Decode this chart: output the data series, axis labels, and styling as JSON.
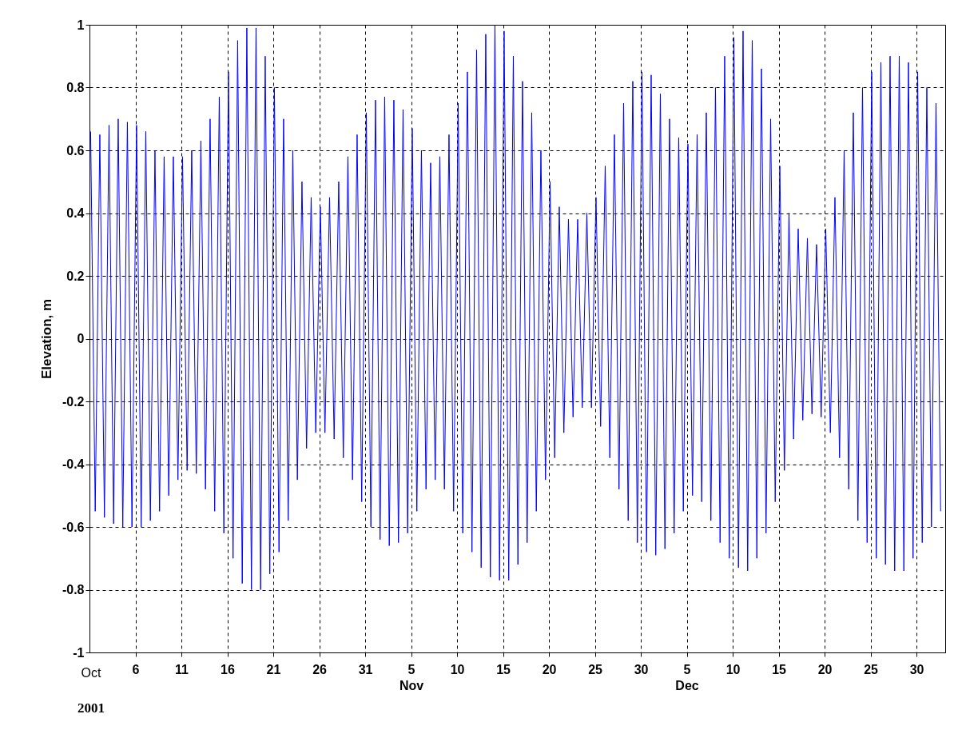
{
  "chart_data": {
    "type": "line",
    "ylabel": "Elevation, m",
    "annotations": [
      "Oct",
      "2001"
    ],
    "x": [
      "2001-10-01T03:00",
      "2001-10-01T15:00",
      "2001-10-02T03:00",
      "2001-10-02T15:00",
      "2001-10-03T03:00",
      "2001-10-03T15:00",
      "2001-10-04T03:00",
      "2001-10-04T15:00",
      "2001-10-05T03:00",
      "2001-10-05T15:00",
      "2001-10-06T03:00",
      "2001-10-06T15:00",
      "2001-10-07T03:00",
      "2001-10-07T15:00",
      "2001-10-08T03:00",
      "2001-10-08T15:00",
      "2001-10-09T03:00",
      "2001-10-09T15:00",
      "2001-10-10T03:00",
      "2001-10-10T15:00",
      "2001-10-11T03:00",
      "2001-10-11T15:00",
      "2001-10-12T03:00",
      "2001-10-12T15:00",
      "2001-10-13T03:00",
      "2001-10-13T15:00",
      "2001-10-14T03:00",
      "2001-10-14T15:00",
      "2001-10-15T03:00",
      "2001-10-15T15:00",
      "2001-10-16T03:00",
      "2001-10-16T15:00",
      "2001-10-17T03:00",
      "2001-10-17T15:00",
      "2001-10-18T03:00",
      "2001-10-18T15:00",
      "2001-10-19T03:00",
      "2001-10-19T15:00",
      "2001-10-20T03:00",
      "2001-10-20T15:00",
      "2001-10-21T03:00",
      "2001-10-21T15:00",
      "2001-10-22T03:00",
      "2001-10-22T15:00",
      "2001-10-23T03:00",
      "2001-10-23T15:00",
      "2001-10-24T03:00",
      "2001-10-24T15:00",
      "2001-10-25T03:00",
      "2001-10-25T15:00",
      "2001-10-26T03:00",
      "2001-10-26T15:00",
      "2001-10-27T03:00",
      "2001-10-27T15:00",
      "2001-10-28T03:00",
      "2001-10-28T15:00",
      "2001-10-29T03:00",
      "2001-10-29T15:00",
      "2001-10-30T03:00",
      "2001-10-30T15:00",
      "2001-10-31T03:00",
      "2001-10-31T15:00",
      "2001-11-01T03:00",
      "2001-11-01T15:00",
      "2001-11-02T03:00",
      "2001-11-02T15:00",
      "2001-11-03T03:00",
      "2001-11-03T15:00",
      "2001-11-04T03:00",
      "2001-11-04T15:00",
      "2001-11-05T03:00",
      "2001-11-05T15:00",
      "2001-11-06T03:00",
      "2001-11-06T15:00",
      "2001-11-07T03:00",
      "2001-11-07T15:00",
      "2001-11-08T03:00",
      "2001-11-08T15:00",
      "2001-11-09T03:00",
      "2001-11-09T15:00",
      "2001-11-10T03:00",
      "2001-11-10T15:00",
      "2001-11-11T03:00",
      "2001-11-11T15:00",
      "2001-11-12T03:00",
      "2001-11-12T15:00",
      "2001-11-13T03:00",
      "2001-11-13T15:00",
      "2001-11-14T03:00",
      "2001-11-14T15:00",
      "2001-11-15T03:00",
      "2001-11-15T15:00",
      "2001-11-16T03:00",
      "2001-11-16T15:00",
      "2001-11-17T03:00",
      "2001-11-17T15:00",
      "2001-11-18T03:00",
      "2001-11-18T15:00",
      "2001-11-19T03:00",
      "2001-11-19T15:00",
      "2001-11-20T03:00",
      "2001-11-20T15:00",
      "2001-11-21T03:00",
      "2001-11-21T15:00",
      "2001-11-22T03:00",
      "2001-11-22T15:00",
      "2001-11-23T03:00",
      "2001-11-23T15:00",
      "2001-11-24T03:00",
      "2001-11-24T15:00",
      "2001-11-25T03:00",
      "2001-11-25T15:00",
      "2001-11-26T03:00",
      "2001-11-26T15:00",
      "2001-11-27T03:00",
      "2001-11-27T15:00",
      "2001-11-28T03:00",
      "2001-11-28T15:00",
      "2001-11-29T03:00",
      "2001-11-29T15:00",
      "2001-11-30T03:00",
      "2001-11-30T15:00",
      "2001-12-01T03:00",
      "2001-12-01T15:00",
      "2001-12-02T03:00",
      "2001-12-02T15:00",
      "2001-12-03T03:00",
      "2001-12-03T15:00",
      "2001-12-04T03:00",
      "2001-12-04T15:00",
      "2001-12-05T03:00",
      "2001-12-05T15:00",
      "2001-12-06T03:00",
      "2001-12-06T15:00",
      "2001-12-07T03:00",
      "2001-12-07T15:00",
      "2001-12-08T03:00",
      "2001-12-08T15:00",
      "2001-12-09T03:00",
      "2001-12-09T15:00",
      "2001-12-10T03:00",
      "2001-12-10T15:00",
      "2001-12-11T03:00",
      "2001-12-11T15:00",
      "2001-12-12T03:00",
      "2001-12-12T15:00",
      "2001-12-13T03:00",
      "2001-12-13T15:00",
      "2001-12-14T03:00",
      "2001-12-14T15:00",
      "2001-12-15T03:00",
      "2001-12-15T15:00",
      "2001-12-16T03:00",
      "2001-12-16T15:00",
      "2001-12-17T03:00",
      "2001-12-17T15:00",
      "2001-12-18T03:00",
      "2001-12-18T15:00",
      "2001-12-19T03:00",
      "2001-12-19T15:00",
      "2001-12-20T03:00",
      "2001-12-20T15:00",
      "2001-12-21T03:00",
      "2001-12-21T15:00",
      "2001-12-22T03:00",
      "2001-12-22T15:00",
      "2001-12-23T03:00",
      "2001-12-23T15:00",
      "2001-12-24T03:00",
      "2001-12-24T15:00",
      "2001-12-25T03:00",
      "2001-12-25T15:00",
      "2001-12-26T03:00",
      "2001-12-26T15:00",
      "2001-12-27T03:00",
      "2001-12-27T15:00",
      "2001-12-28T03:00",
      "2001-12-28T15:00",
      "2001-12-29T03:00",
      "2001-12-29T15:00",
      "2001-12-30T03:00",
      "2001-12-30T15:00",
      "2001-12-31T03:00",
      "2001-12-31T15:00",
      "2002-01-01T03:00",
      "2002-01-01T15:00"
    ],
    "series": [
      {
        "color": "#0000ff",
        "values": [
          0.66,
          -0.55,
          0.65,
          -0.57,
          0.68,
          -0.59,
          0.7,
          -0.6,
          0.69,
          -0.6,
          0.68,
          -0.6,
          0.66,
          -0.58,
          0.6,
          -0.55,
          0.58,
          -0.5,
          0.58,
          -0.45,
          0.58,
          -0.42,
          0.6,
          -0.43,
          0.63,
          -0.48,
          0.7,
          -0.55,
          0.77,
          -0.62,
          0.85,
          -0.7,
          0.95,
          -0.78,
          0.99,
          -0.8,
          0.99,
          -0.8,
          0.9,
          -0.75,
          0.8,
          -0.68,
          0.7,
          -0.58,
          0.6,
          -0.45,
          0.5,
          -0.35,
          0.45,
          -0.3,
          0.42,
          -0.3,
          0.45,
          -0.32,
          0.5,
          -0.38,
          0.58,
          -0.45,
          0.65,
          -0.52,
          0.72,
          -0.6,
          0.76,
          -0.64,
          0.77,
          -0.66,
          0.76,
          -0.65,
          0.73,
          -0.62,
          0.67,
          -0.55,
          0.6,
          -0.48,
          0.56,
          -0.45,
          0.58,
          -0.48,
          0.65,
          -0.55,
          0.75,
          -0.62,
          0.85,
          -0.68,
          0.92,
          -0.73,
          0.97,
          -0.76,
          1.0,
          -0.77,
          0.98,
          -0.77,
          0.9,
          -0.72,
          0.82,
          -0.65,
          0.72,
          -0.55,
          0.6,
          -0.45,
          0.5,
          -0.38,
          0.42,
          -0.3,
          0.38,
          -0.25,
          0.38,
          -0.22,
          0.4,
          -0.22,
          0.45,
          -0.28,
          0.55,
          -0.38,
          0.65,
          -0.48,
          0.75,
          -0.58,
          0.82,
          -0.65,
          0.85,
          -0.68,
          0.84,
          -0.69,
          0.78,
          -0.67,
          0.7,
          -0.62,
          0.64,
          -0.55,
          0.62,
          -0.5,
          0.65,
          -0.52,
          0.72,
          -0.58,
          0.8,
          -0.65,
          0.9,
          -0.7,
          0.96,
          -0.73,
          0.98,
          -0.74,
          0.95,
          -0.7,
          0.86,
          -0.62,
          0.7,
          -0.52,
          0.55,
          -0.42,
          0.4,
          -0.32,
          0.35,
          -0.26,
          0.32,
          -0.24,
          0.3,
          -0.25,
          0.35,
          -0.3,
          0.45,
          -0.38,
          0.6,
          -0.48,
          0.72,
          -0.58,
          0.8,
          -0.65,
          0.85,
          -0.7,
          0.88,
          -0.72,
          0.9,
          -0.74,
          0.9,
          -0.74,
          0.88,
          -0.7,
          0.85,
          -0.65,
          0.8,
          -0.6,
          0.75,
          -0.55
        ]
      }
    ],
    "xlim": [
      "2001-10-01",
      "2002-01-02T03:00"
    ],
    "xticks": [
      {
        "value": "2001-10-06",
        "label": "6"
      },
      {
        "value": "2001-10-11",
        "label": "11"
      },
      {
        "value": "2001-10-16",
        "label": "16"
      },
      {
        "value": "2001-10-21",
        "label": "21"
      },
      {
        "value": "2001-10-26",
        "label": "26"
      },
      {
        "value": "2001-10-31",
        "label": "31"
      },
      {
        "value": "2001-11-05",
        "label": "5\nNov"
      },
      {
        "value": "2001-11-10",
        "label": "10"
      },
      {
        "value": "2001-11-15",
        "label": "15"
      },
      {
        "value": "2001-11-20",
        "label": "20"
      },
      {
        "value": "2001-11-25",
        "label": "25"
      },
      {
        "value": "2001-11-30",
        "label": "30"
      },
      {
        "value": "2001-12-05",
        "label": "5\nDec"
      },
      {
        "value": "2001-12-10",
        "label": "10"
      },
      {
        "value": "2001-12-15",
        "label": "15"
      },
      {
        "value": "2001-12-20",
        "label": "20"
      },
      {
        "value": "2001-12-25",
        "label": "25"
      },
      {
        "value": "2001-12-30",
        "label": "30"
      }
    ],
    "ylim": [
      -1,
      1
    ],
    "yticks": [
      -1,
      -0.8,
      -0.6,
      -0.4,
      -0.2,
      0,
      0.2,
      0.4,
      0.6,
      0.8,
      1
    ],
    "grid": true,
    "line_style": "solid"
  }
}
